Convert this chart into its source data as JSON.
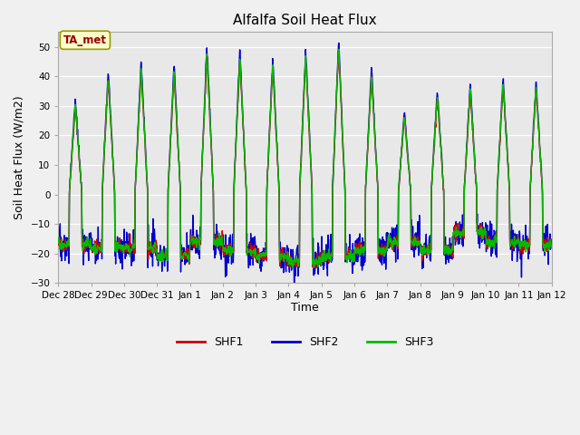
{
  "title": "Alfalfa Soil Heat Flux",
  "ylabel": "Soil Heat Flux (W/m2)",
  "xlabel": "Time",
  "ylim": [
    -30,
    55
  ],
  "yticks": [
    -30,
    -20,
    -10,
    0,
    10,
    20,
    30,
    40,
    50
  ],
  "fig_bg_color": "#f0f0f0",
  "plot_bg_color": "#e8e8e8",
  "colors": {
    "SHF1": "#cc0000",
    "SHF2": "#0000cc",
    "SHF3": "#00bb00"
  },
  "annotation_text": "TA_met",
  "annotation_color": "#990000",
  "annotation_bg": "#ffffcc",
  "annotation_border": "#999900",
  "xtick_labels": [
    "Dec 28",
    "Dec 29",
    "Dec 30",
    "Dec 31",
    "Jan 1",
    "Jan 2",
    "Jan 3",
    "Jan 4",
    "Jan 5",
    "Jan 6",
    "Jan 7",
    "Jan 8",
    "Jan 9",
    "Jan 10",
    "Jan 11",
    "Jan 12"
  ],
  "linewidth": 1.0,
  "num_days": 15
}
